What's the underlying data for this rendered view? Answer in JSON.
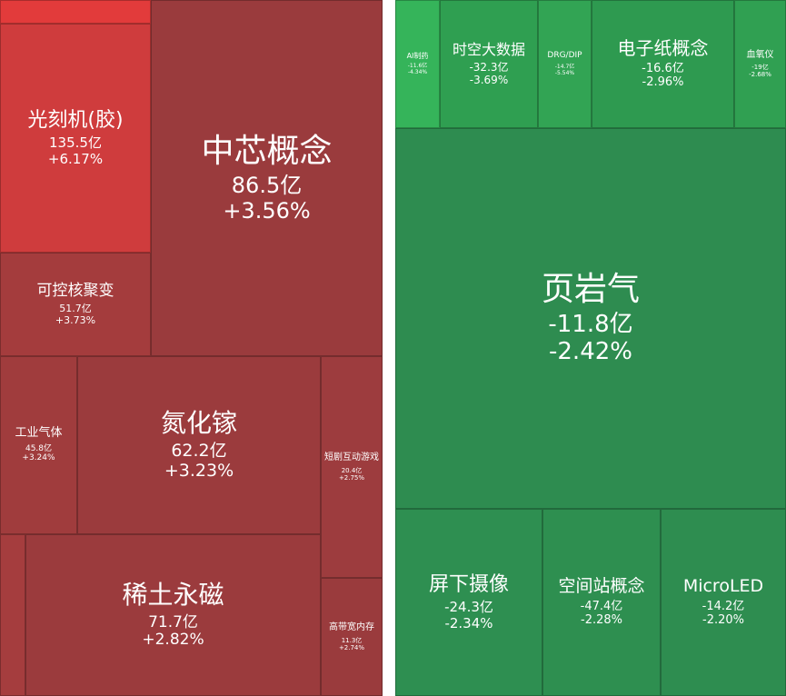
{
  "left_tiles": [
    {
      "name": "光刻机(胶)",
      "amount": "135.5亿",
      "change": "+6.17%"
    },
    {
      "name": "中芯概念",
      "amount": "86.5亿",
      "change": "+3.56%"
    },
    {
      "name": "可控核聚变",
      "amount": "51.7亿",
      "change": "+3.73%"
    },
    {
      "name": "工业气体",
      "amount": "45.8亿",
      "change": "+3.24%"
    },
    {
      "name": "氮化镓",
      "amount": "62.2亿",
      "change": "+3.23%"
    },
    {
      "name": "短剧互动游戏",
      "amount": "20.4亿",
      "change": "+2.75%"
    },
    {
      "name": "稀土永磁",
      "amount": "71.7亿",
      "change": "+2.82%"
    },
    {
      "name": "高带宽内存",
      "amount": "11.3亿",
      "change": "+2.74%"
    }
  ],
  "right_tiles": [
    {
      "name": "AI制药",
      "amount": "-11.6亿",
      "change": "-4.34%"
    },
    {
      "name": "时空大数据",
      "amount": "-32.3亿",
      "change": "-3.69%"
    },
    {
      "name": "DRG/DIP",
      "amount": "-14.7亿",
      "change": "-5.54%"
    },
    {
      "name": "电子纸概念",
      "amount": "-16.6亿",
      "change": "-2.96%"
    },
    {
      "name": "血氧仪",
      "amount": "-19亿",
      "change": "-2.68%"
    },
    {
      "name": "页岩气",
      "amount": "-11.8亿",
      "change": "-2.42%"
    },
    {
      "name": "屏下摄像",
      "amount": "-24.3亿",
      "change": "-2.34%"
    },
    {
      "name": "空间站概念",
      "amount": "-47.4亿",
      "change": "-2.28%"
    },
    {
      "name": "MicroLED",
      "amount": "-14.2亿",
      "change": "-2.20%"
    }
  ]
}
